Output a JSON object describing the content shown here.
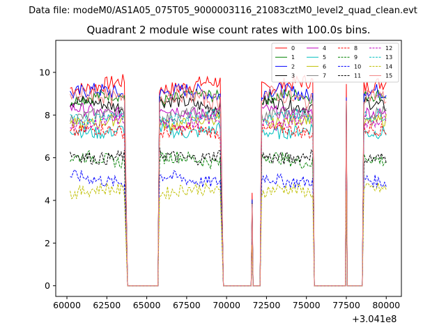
{
  "figure": {
    "suptitle": "Data file: modeM0/AS1A05_075T05_9000003116_21083cztM0_level2_quad_clean.evt",
    "offset_text": "+3.041e8"
  },
  "chart_data": {
    "type": "line",
    "title": "Quadrant 2 module wise count rates with 100.0s bins.",
    "xlabel": "",
    "ylabel": "",
    "x_offset": 304100000,
    "xlim": [
      59300,
      80950
    ],
    "ylim": [
      -0.5,
      11.5
    ],
    "xticks": [
      60000,
      62500,
      65000,
      67500,
      70000,
      72500,
      75000,
      77500,
      80000
    ],
    "xtick_labels": [
      "60000",
      "62500",
      "65000",
      "67500",
      "70000",
      "72500",
      "75000",
      "77500",
      "80000"
    ],
    "yticks": [
      0,
      2,
      4,
      6,
      8,
      10
    ],
    "ytick_labels": [
      "0",
      "2",
      "4",
      "6",
      "8",
      "10"
    ],
    "legend_position": "upper right",
    "legend_columns": 4,
    "segments": [
      {
        "start": 60200,
        "end": 63600
      },
      {
        "start": 65800,
        "end": 69600
      },
      {
        "start": 72200,
        "end": 75400
      },
      {
        "start": 78600,
        "end": 80000
      }
    ],
    "gap_level": 0,
    "gap_ranges": [
      {
        "start": 63800,
        "end": 65700
      },
      {
        "start": 69800,
        "end": 71500
      },
      {
        "start": 71700,
        "end": 72100
      },
      {
        "start": 75500,
        "end": 77400
      },
      {
        "start": 77600,
        "end": 78500
      }
    ],
    "spikes": [
      {
        "x": 71600,
        "peak_scale": 0.45
      },
      {
        "x": 77500,
        "peak_scale": 1.0
      }
    ],
    "series": [
      {
        "name": "0",
        "color": "#ff0000",
        "style": "solid",
        "level": 9.4,
        "noise": 0.35
      },
      {
        "name": "1",
        "color": "#008000",
        "style": "solid",
        "level": 8.8,
        "noise": 0.3
      },
      {
        "name": "2",
        "color": "#0000ff",
        "style": "solid",
        "level": 9.0,
        "noise": 0.35
      },
      {
        "name": "3",
        "color": "#000000",
        "style": "solid",
        "level": 8.5,
        "noise": 0.3
      },
      {
        "name": "4",
        "color": "#bf00bf",
        "style": "solid",
        "level": 8.2,
        "noise": 0.3
      },
      {
        "name": "5",
        "color": "#00bfbf",
        "style": "solid",
        "level": 7.3,
        "noise": 0.3
      },
      {
        "name": "6",
        "color": "#bfbf00",
        "style": "solid",
        "level": 7.7,
        "noise": 0.3
      },
      {
        "name": "7",
        "color": "#808080",
        "style": "solid",
        "level": 8.0,
        "noise": 0.3
      },
      {
        "name": "8",
        "color": "#ff0000",
        "style": "dashed",
        "level": 7.2,
        "noise": 0.3
      },
      {
        "name": "9",
        "color": "#008000",
        "style": "dashed",
        "level": 5.9,
        "noise": 0.3
      },
      {
        "name": "10",
        "color": "#0000ff",
        "style": "dashed",
        "level": 5.0,
        "noise": 0.3
      },
      {
        "name": "11",
        "color": "#000000",
        "style": "dashed",
        "level": 6.1,
        "noise": 0.3
      },
      {
        "name": "12",
        "color": "#bf00bf",
        "style": "dashed",
        "level": 7.7,
        "noise": 0.3
      },
      {
        "name": "13",
        "color": "#00bfbf",
        "style": "dashed",
        "level": 7.9,
        "noise": 0.3
      },
      {
        "name": "14",
        "color": "#bfbf00",
        "style": "dashed",
        "level": 4.4,
        "noise": 0.3
      },
      {
        "name": "15",
        "color": "#f08080",
        "style": "solid",
        "level": 8.8,
        "noise": 0.4
      }
    ]
  }
}
